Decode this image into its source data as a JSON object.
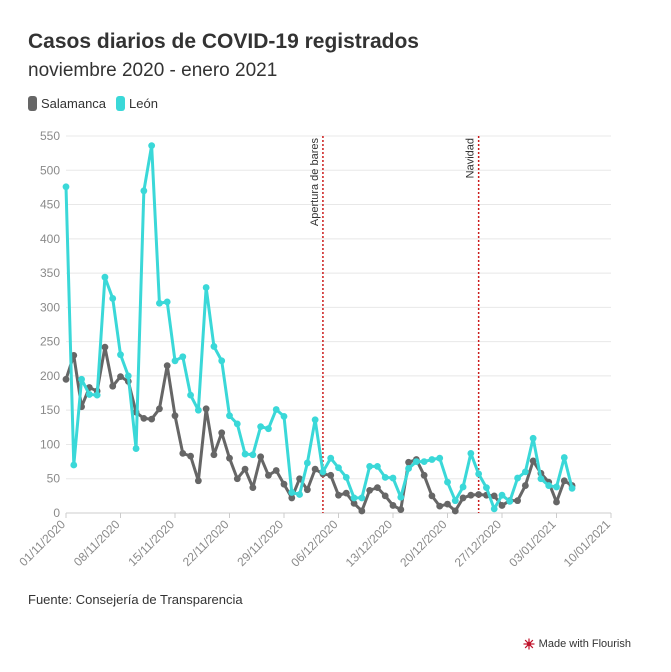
{
  "header": {
    "title": "Casos diarios de COVID-19 registrados",
    "subtitle": "noviembre 2020 - enero 2021"
  },
  "legend": [
    {
      "label": "Salamanca",
      "color": "#666666"
    },
    {
      "label": "León",
      "color": "#3ad8d8"
    }
  ],
  "footer": {
    "source": "Fuente: Consejería de Transparencia",
    "made_with": "Made with Flourish"
  },
  "chart_data": {
    "type": "line",
    "title": "Casos diarios de COVID-19 registrados",
    "subtitle": "noviembre 2020 - enero 2021",
    "x_start": "2020-11-01",
    "x_unit": "days since 01/11/2020",
    "xlim": [
      0,
      70
    ],
    "ylim": [
      0,
      550
    ],
    "y_ticks": [
      0,
      50,
      100,
      150,
      200,
      250,
      300,
      350,
      400,
      450,
      500,
      550
    ],
    "x_ticks": [
      {
        "day": 0,
        "label": "01/11/2020"
      },
      {
        "day": 7,
        "label": "08/11/2020"
      },
      {
        "day": 14,
        "label": "15/11/2020"
      },
      {
        "day": 21,
        "label": "22/11/2020"
      },
      {
        "day": 28,
        "label": "29/11/2020"
      },
      {
        "day": 35,
        "label": "06/12/2020"
      },
      {
        "day": 42,
        "label": "13/12/2020"
      },
      {
        "day": 49,
        "label": "20/12/2020"
      },
      {
        "day": 56,
        "label": "27/12/2020"
      },
      {
        "day": 63,
        "label": "03/01/2021"
      },
      {
        "day": 70,
        "label": "10/01/2021"
      }
    ],
    "annotations": [
      {
        "day": 33,
        "label": "Apertura de bares"
      },
      {
        "day": 53,
        "label": "Navidad"
      }
    ],
    "grid": true,
    "series": [
      {
        "name": "Salamanca",
        "color": "#666666",
        "values": [
          195,
          230,
          155,
          183,
          178,
          242,
          185,
          199,
          192,
          147,
          138,
          137,
          152,
          215,
          142,
          87,
          83,
          47,
          152,
          85,
          117,
          80,
          50,
          64,
          37,
          82,
          55,
          62,
          42,
          22,
          50,
          34,
          64,
          57,
          55,
          26,
          29,
          14,
          3,
          33,
          37,
          25,
          11,
          5,
          74,
          78,
          55,
          25,
          10,
          13,
          3,
          22,
          26,
          27,
          26,
          25,
          11,
          18,
          18,
          40,
          76,
          58,
          45,
          16,
          47,
          40
        ]
      },
      {
        "name": "León",
        "color": "#3ad8d8",
        "values": [
          476,
          70,
          195,
          173,
          172,
          344,
          313,
          231,
          200,
          94,
          470,
          536,
          306,
          308,
          222,
          228,
          172,
          150,
          329,
          243,
          222,
          142,
          130,
          86,
          85,
          126,
          123,
          151,
          141,
          30,
          27,
          73,
          136,
          60,
          80,
          66,
          52,
          22,
          22,
          68,
          68,
          52,
          51,
          23,
          65,
          75,
          75,
          78,
          80,
          45,
          18,
          38,
          87,
          57,
          37,
          6,
          26,
          17,
          51,
          60,
          109,
          50,
          40,
          38,
          81,
          36
        ]
      }
    ]
  }
}
